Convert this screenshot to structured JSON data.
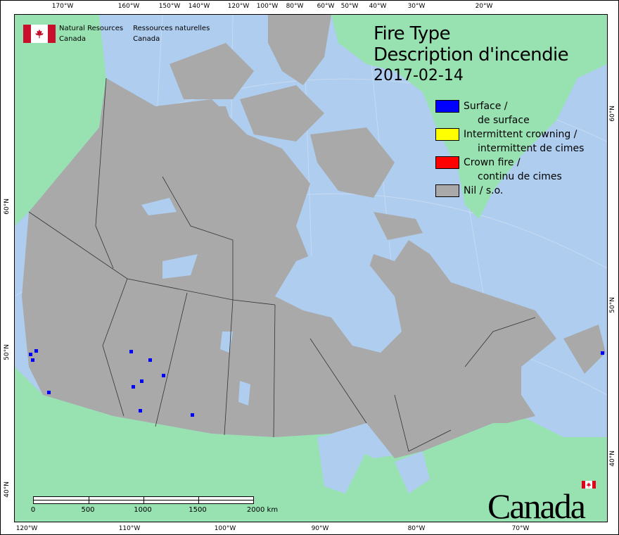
{
  "header": {
    "org_en_1": "Natural Resources",
    "org_en_2": "Canada",
    "org_fr_1": "Ressources naturelles",
    "org_fr_2": "Canada"
  },
  "title": {
    "line1": "Fire Type",
    "line2": "Description d'incendie",
    "date": "2017-02-14"
  },
  "legend": [
    {
      "label": "Surface /",
      "sub": "de surface",
      "color": "#0000ff"
    },
    {
      "label": "Intermittent crowning /",
      "sub": "intermittent de cimes",
      "color": "#ffff00"
    },
    {
      "label": "Crown fire /",
      "sub": "continu de cimes",
      "color": "#ff0000"
    },
    {
      "label": "Nil / s.o.",
      "sub": "",
      "color": "#a9a9a9"
    }
  ],
  "colors": {
    "ocean": "#afcdef",
    "land_other": "#98e2b2",
    "canada": "#a9a9a9",
    "fire": "#0000ff"
  },
  "axes": {
    "top": [
      "170°W",
      "160°W",
      "150°W",
      "140°W",
      "120°W",
      "100°W",
      "80°W",
      "60°W",
      "50°W",
      "40°W",
      "30°W",
      "20°W"
    ],
    "bottom": [
      "120°W",
      "110°W",
      "100°W",
      "90°W",
      "80°W",
      "70°W"
    ],
    "left": [
      "60°N",
      "50°N",
      "40°N"
    ],
    "right": [
      "60°N",
      "50°N",
      "40°N"
    ]
  },
  "scale": {
    "ticks": [
      "0",
      "500",
      "1000",
      "1500",
      "2000 km"
    ]
  },
  "wordmark": "Canada"
}
